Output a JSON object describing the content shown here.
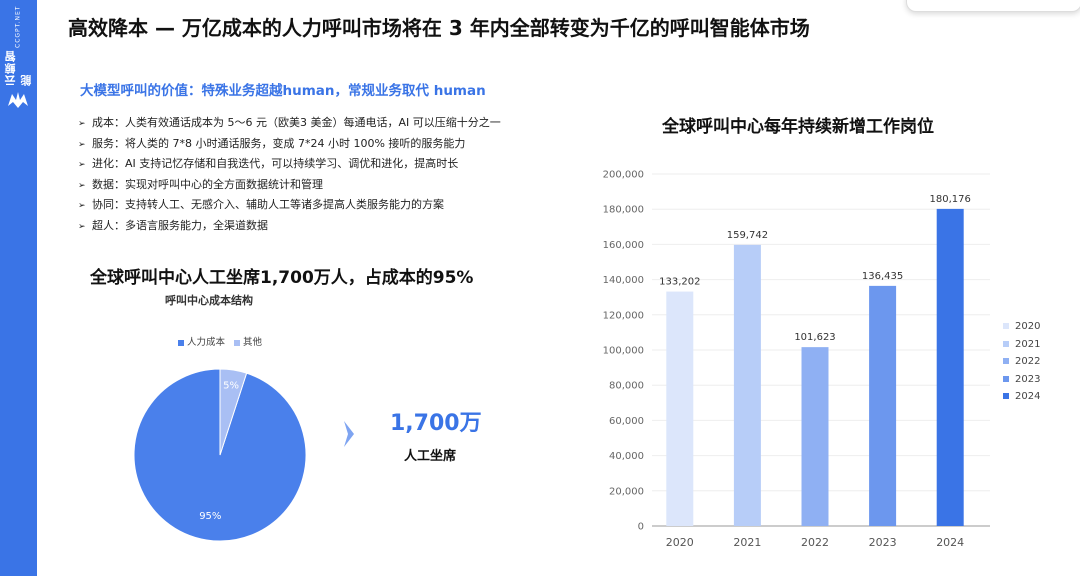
{
  "brand": {
    "name": "云鲸智能",
    "site": "CCGPT.NET"
  },
  "title": "高效降本 — 万亿成本的人力呼叫市场将在 3 年内全部转变为千亿的呼叫智能体市场",
  "subtitle": "大模型呼叫的价值：特殊业务超越human，常规业务取代 human",
  "bullets": [
    "成本：人类有效通话成本为 5～6 元（欧美3 美金）每通电话，AI 可以压缩十分之一",
    "服务：将人类的 7*8 小时通话服务，变成 7*24 小时 100% 接听的服务能力",
    "进化：AI 支持记忆存储和自我迭代，可以持续学习、调优和进化，提高时长",
    "数据：实现对呼叫中心的全方面数据统计和管理",
    "协同：支持转人工、无感介入、辅助人工等诸多提高人类服务能力的方案",
    "超人：多语言服务能力，全渠道数据"
  ],
  "bullet_marker": "➢",
  "left_heading": "全球呼叫中心人工坐席1,700万人，占成本的95%",
  "big_number": "1,700万",
  "big_number_label": "人工坐席",
  "colors": {
    "accent": "#3a74e6",
    "pie_main": "#4a80eb",
    "pie_other": "#a9bff4"
  },
  "chart_data": [
    {
      "type": "pie",
      "title": "呼叫中心成本结构",
      "categories": [
        "人力成本",
        "其他"
      ],
      "values": [
        95,
        5
      ],
      "value_labels": [
        "95%",
        "5%"
      ],
      "colors": [
        "#4a80eb",
        "#a9bff4"
      ],
      "legend": "top"
    },
    {
      "type": "bar",
      "title": "全球呼叫中心每年持续新增工作岗位",
      "categories": [
        "2020",
        "2021",
        "2022",
        "2023",
        "2024"
      ],
      "values": [
        133202,
        159742,
        101623,
        136435,
        180176
      ],
      "value_labels": [
        "133,202",
        "159,742",
        "101,623",
        "136,435",
        "180,176"
      ],
      "colors": [
        "#dce6fb",
        "#b7cdf8",
        "#8fb0f3",
        "#6c97ee",
        "#3a74e6"
      ],
      "legend_entries": [
        "2020",
        "2021",
        "2022",
        "2023",
        "2024"
      ],
      "yticks": [
        "0",
        "20,000",
        "40,000",
        "60,000",
        "80,000",
        "100,000",
        "120,000",
        "140,000",
        "160,000",
        "180,000",
        "200,000"
      ],
      "ylim": [
        0,
        200000
      ],
      "grid": true,
      "legend": "right"
    }
  ]
}
